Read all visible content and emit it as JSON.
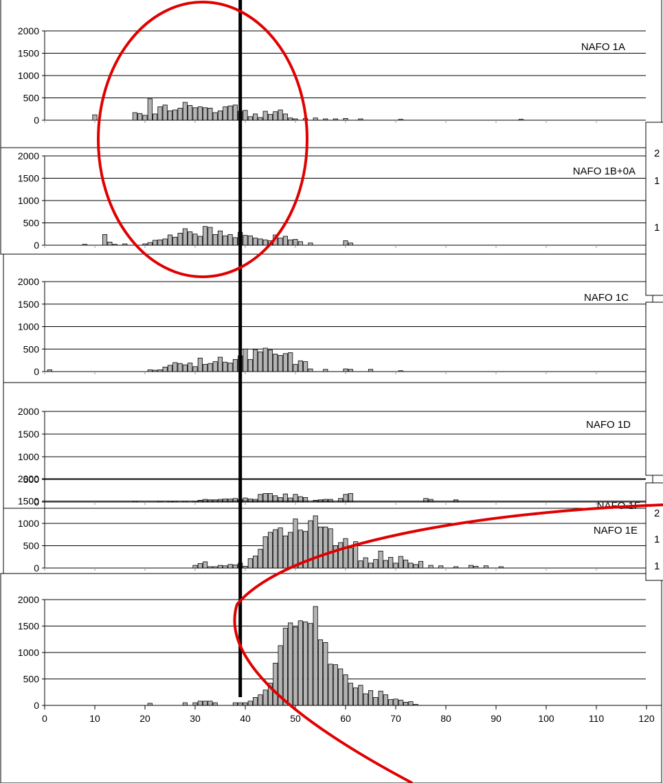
{
  "chart_data": {
    "type": "bar",
    "xlabel": "",
    "ylabel": "",
    "xlim": [
      0,
      120
    ],
    "ylim": [
      0,
      2000
    ],
    "y_ticks": [
      0,
      500,
      1000,
      1500,
      2000
    ],
    "x_ticks": [
      0,
      10,
      20,
      30,
      40,
      50,
      60,
      70,
      80,
      90,
      100,
      110,
      120
    ],
    "x_tick_labels": [
      "0",
      "10",
      "20",
      "30",
      "40",
      "50",
      "60",
      "70",
      "80",
      "90",
      "100",
      "110",
      "120"
    ],
    "y_tick_labels": [
      "0",
      "500",
      "1000",
      "1500",
      "2000"
    ],
    "grid": true,
    "bar_fill": "#b4b4b4",
    "bar_stroke": "#000000",
    "annotation_color": "#e00000",
    "marker_line_x": 39,
    "side_box_digits": [
      "2",
      "1",
      "1",
      "2",
      "1",
      "1"
    ],
    "panels": [
      {
        "name": "NAFO 1A",
        "x": [
          10,
          18,
          19,
          20,
          21,
          22,
          23,
          24,
          25,
          26,
          27,
          28,
          29,
          30,
          31,
          32,
          33,
          34,
          35,
          36,
          37,
          38,
          39,
          40,
          41,
          42,
          43,
          44,
          45,
          46,
          47,
          48,
          49,
          50,
          52,
          54,
          56,
          58,
          60,
          63,
          71,
          95
        ],
        "values": [
          120,
          170,
          150,
          110,
          480,
          140,
          300,
          340,
          210,
          230,
          270,
          400,
          330,
          280,
          300,
          280,
          270,
          170,
          210,
          300,
          320,
          340,
          200,
          220,
          80,
          140,
          60,
          200,
          130,
          190,
          230,
          140,
          50,
          30,
          40,
          50,
          30,
          30,
          40,
          30,
          20,
          20
        ]
      },
      {
        "name": "NAFO 1B+0A",
        "x": [
          8,
          12,
          13,
          14,
          16,
          20,
          21,
          22,
          23,
          24,
          25,
          26,
          27,
          28,
          29,
          30,
          31,
          32,
          33,
          34,
          35,
          36,
          37,
          38,
          39,
          40,
          41,
          42,
          43,
          44,
          45,
          46,
          47,
          48,
          49,
          50,
          51,
          53,
          60,
          61
        ],
        "values": [
          20,
          240,
          70,
          20,
          30,
          30,
          60,
          110,
          120,
          140,
          230,
          180,
          270,
          370,
          300,
          250,
          200,
          420,
          400,
          240,
          320,
          210,
          240,
          170,
          290,
          220,
          210,
          160,
          140,
          120,
          100,
          230,
          160,
          200,
          120,
          130,
          80,
          50,
          100,
          50
        ]
      },
      {
        "name": "NAFO 1C",
        "x": [
          1,
          21,
          22,
          23,
          24,
          25,
          26,
          27,
          28,
          29,
          30,
          31,
          32,
          33,
          34,
          35,
          36,
          37,
          38,
          39,
          40,
          41,
          42,
          43,
          44,
          45,
          46,
          47,
          48,
          49,
          50,
          51,
          52,
          53,
          56,
          60,
          61,
          65,
          71
        ],
        "values": [
          40,
          40,
          30,
          40,
          100,
          140,
          200,
          180,
          150,
          190,
          110,
          300,
          160,
          180,
          220,
          320,
          210,
          190,
          270,
          350,
          500,
          270,
          490,
          440,
          520,
          480,
          390,
          360,
          400,
          420,
          160,
          240,
          220,
          60,
          50,
          60,
          50,
          50,
          20
        ]
      },
      {
        "name": "NAFO 1D",
        "x": [
          18,
          23,
          25,
          26,
          28,
          30,
          31,
          32,
          33,
          34,
          35,
          36,
          37,
          38,
          39,
          40,
          41,
          42,
          43,
          44,
          45,
          46,
          47,
          48,
          49,
          50,
          51,
          52,
          54,
          55,
          56,
          57,
          59,
          60,
          61,
          76,
          77,
          82
        ],
        "values": [
          20,
          20,
          20,
          20,
          20,
          20,
          40,
          60,
          50,
          50,
          60,
          70,
          70,
          80,
          60,
          90,
          70,
          60,
          170,
          190,
          190,
          140,
          100,
          180,
          90,
          170,
          120,
          100,
          40,
          50,
          60,
          60,
          80,
          170,
          190,
          80,
          60,
          50
        ]
      },
      {
        "name": "NAFO 1E",
        "x": [
          30,
          31,
          32,
          33,
          34,
          35,
          36,
          37,
          38,
          39,
          40,
          41,
          42,
          43,
          44,
          45,
          46,
          47,
          48,
          49,
          50,
          51,
          52,
          53,
          54,
          55,
          56,
          57,
          58,
          59,
          60,
          61,
          62,
          63,
          64,
          65,
          66,
          67,
          68,
          69,
          70,
          71,
          72,
          73,
          74,
          75,
          77,
          79,
          82,
          85,
          86,
          88,
          91
        ],
        "values": [
          60,
          100,
          140,
          30,
          30,
          60,
          50,
          80,
          70,
          110,
          40,
          210,
          270,
          420,
          700,
          800,
          860,
          900,
          720,
          800,
          1100,
          850,
          820,
          1060,
          1170,
          920,
          920,
          880,
          500,
          570,
          660,
          450,
          590,
          160,
          230,
          110,
          190,
          380,
          170,
          240,
          110,
          260,
          180,
          110,
          80,
          150,
          60,
          50,
          30,
          60,
          40,
          50,
          30
        ]
      },
      {
        "name": "NAFO 1F",
        "x": [
          21,
          28,
          30,
          31,
          32,
          33,
          34,
          38,
          39,
          40,
          41,
          42,
          43,
          44,
          45,
          46,
          47,
          48,
          49,
          50,
          51,
          52,
          53,
          54,
          55,
          56,
          57,
          58,
          59,
          60,
          61,
          62,
          63,
          64,
          65,
          66,
          67,
          68,
          69,
          70,
          71,
          72,
          73,
          74
        ],
        "values": [
          40,
          50,
          50,
          80,
          80,
          80,
          50,
          50,
          50,
          50,
          80,
          150,
          200,
          290,
          420,
          800,
          1130,
          1460,
          1560,
          1480,
          1600,
          1580,
          1550,
          1870,
          1240,
          1190,
          780,
          770,
          690,
          580,
          420,
          330,
          380,
          220,
          280,
          150,
          270,
          200,
          110,
          120,
          100,
          60,
          70,
          20
        ]
      }
    ]
  }
}
